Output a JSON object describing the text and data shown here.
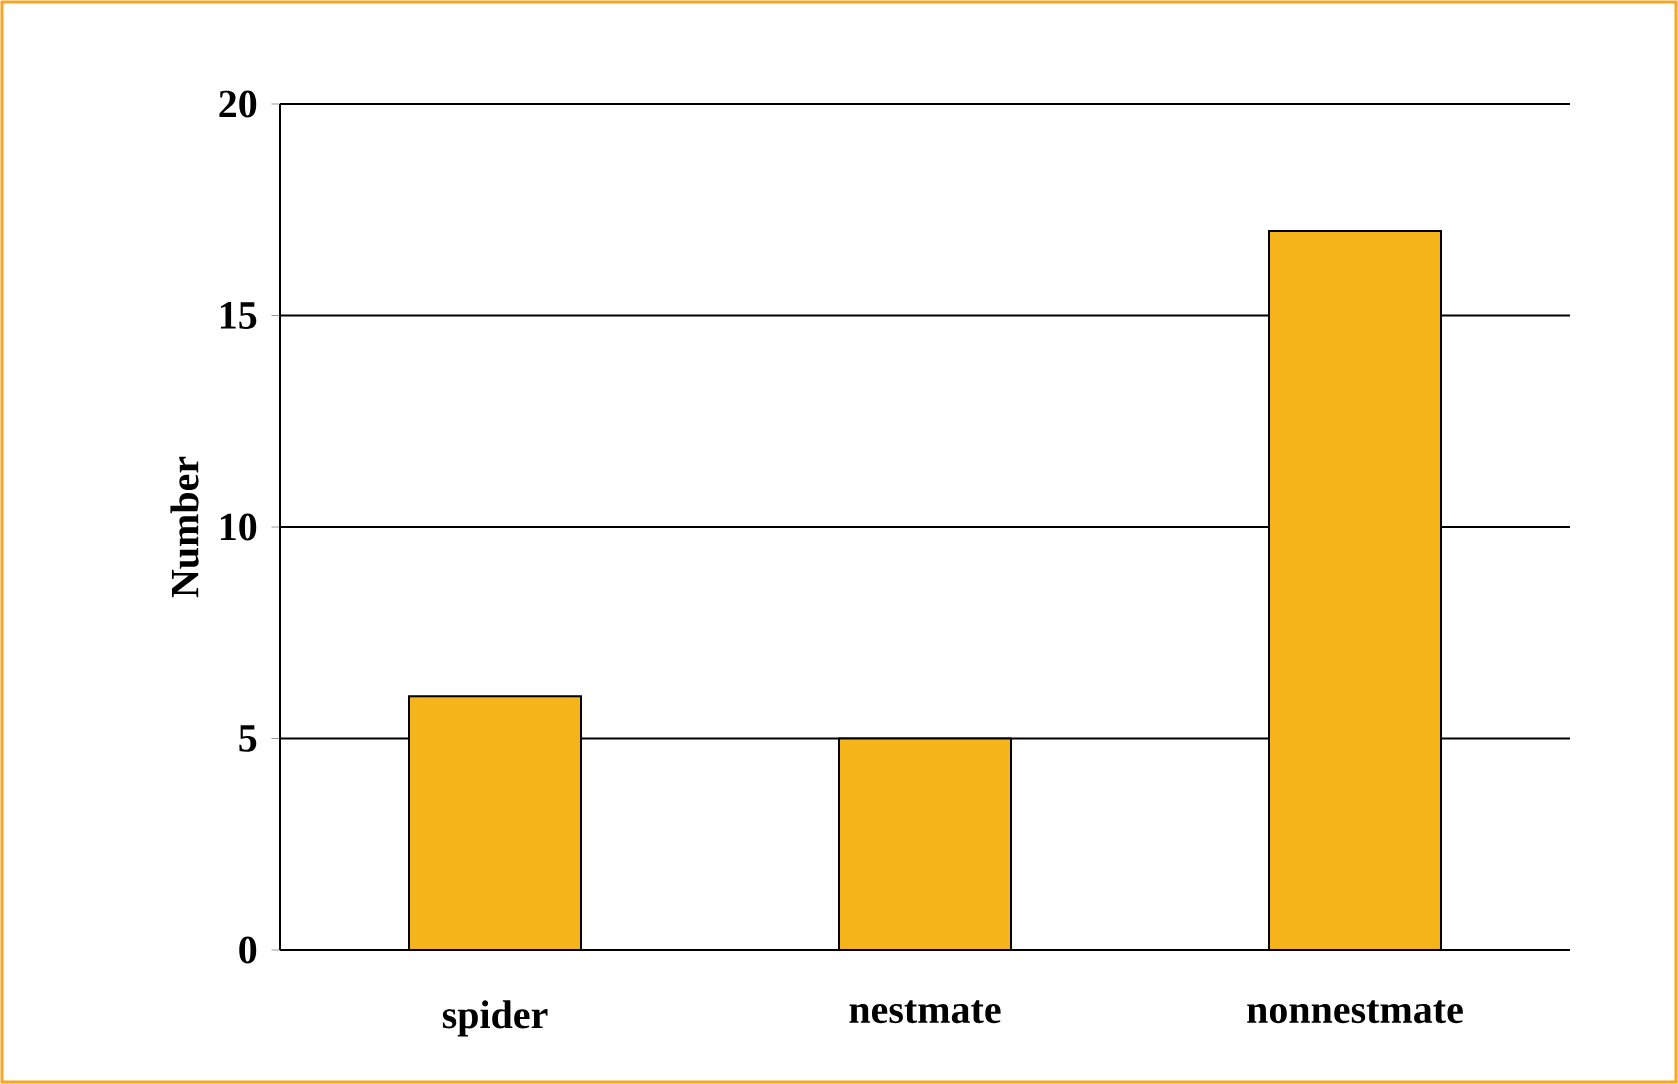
{
  "chart_data": {
    "type": "bar",
    "ylabel": "Number",
    "categories": [
      "spider",
      "nestmate",
      "nonnestmate"
    ],
    "values": [
      6,
      5,
      17
    ],
    "color": "#f5b41a",
    "ylim": [
      0,
      20
    ],
    "yticks": [
      0,
      5,
      10,
      15,
      20
    ],
    "grid": "y"
  }
}
